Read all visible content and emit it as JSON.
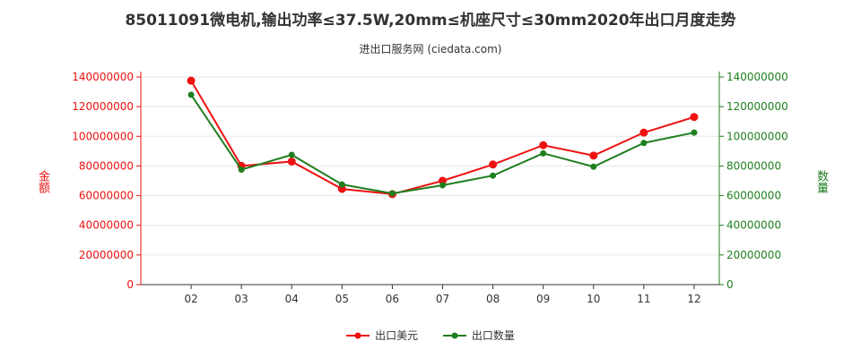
{
  "title": "85011091微电机,输出功率≤37.5W,20mm≤机座尺寸≤30mm2020年出口月度走势",
  "subtitle": "进出口服务网 (ciedata.com)",
  "colors": {
    "export_value": "#ee1111",
    "export_qty": "#1f7f1f",
    "axis_left": "#ee1111",
    "axis_right": "#1f7f1f"
  },
  "chart_data": {
    "type": "line",
    "categories": [
      "02",
      "03",
      "04",
      "05",
      "06",
      "07",
      "08",
      "09",
      "10",
      "11",
      "12"
    ],
    "ylabel_left": "金额",
    "ylabel_right": "数量",
    "ylim_left": [
      0,
      140000000
    ],
    "ylim_right": [
      0,
      140000000
    ],
    "yticks": [
      "0",
      "20000000",
      "40000000",
      "60000000",
      "80000000",
      "100000000",
      "120000000",
      "140000000"
    ],
    "legend_position": "bottom",
    "series": [
      {
        "name": "出口美元",
        "axis": "left",
        "values": [
          137500000,
          80000000,
          83000000,
          64500000,
          61000000,
          70000000,
          81000000,
          94000000,
          87000000,
          102500000,
          113000000
        ]
      },
      {
        "name": "出口数量",
        "axis": "right",
        "values": [
          128000000,
          77500000,
          87500000,
          67500000,
          61500000,
          67000000,
          73500000,
          88500000,
          79500000,
          95500000,
          102500000
        ]
      }
    ]
  }
}
